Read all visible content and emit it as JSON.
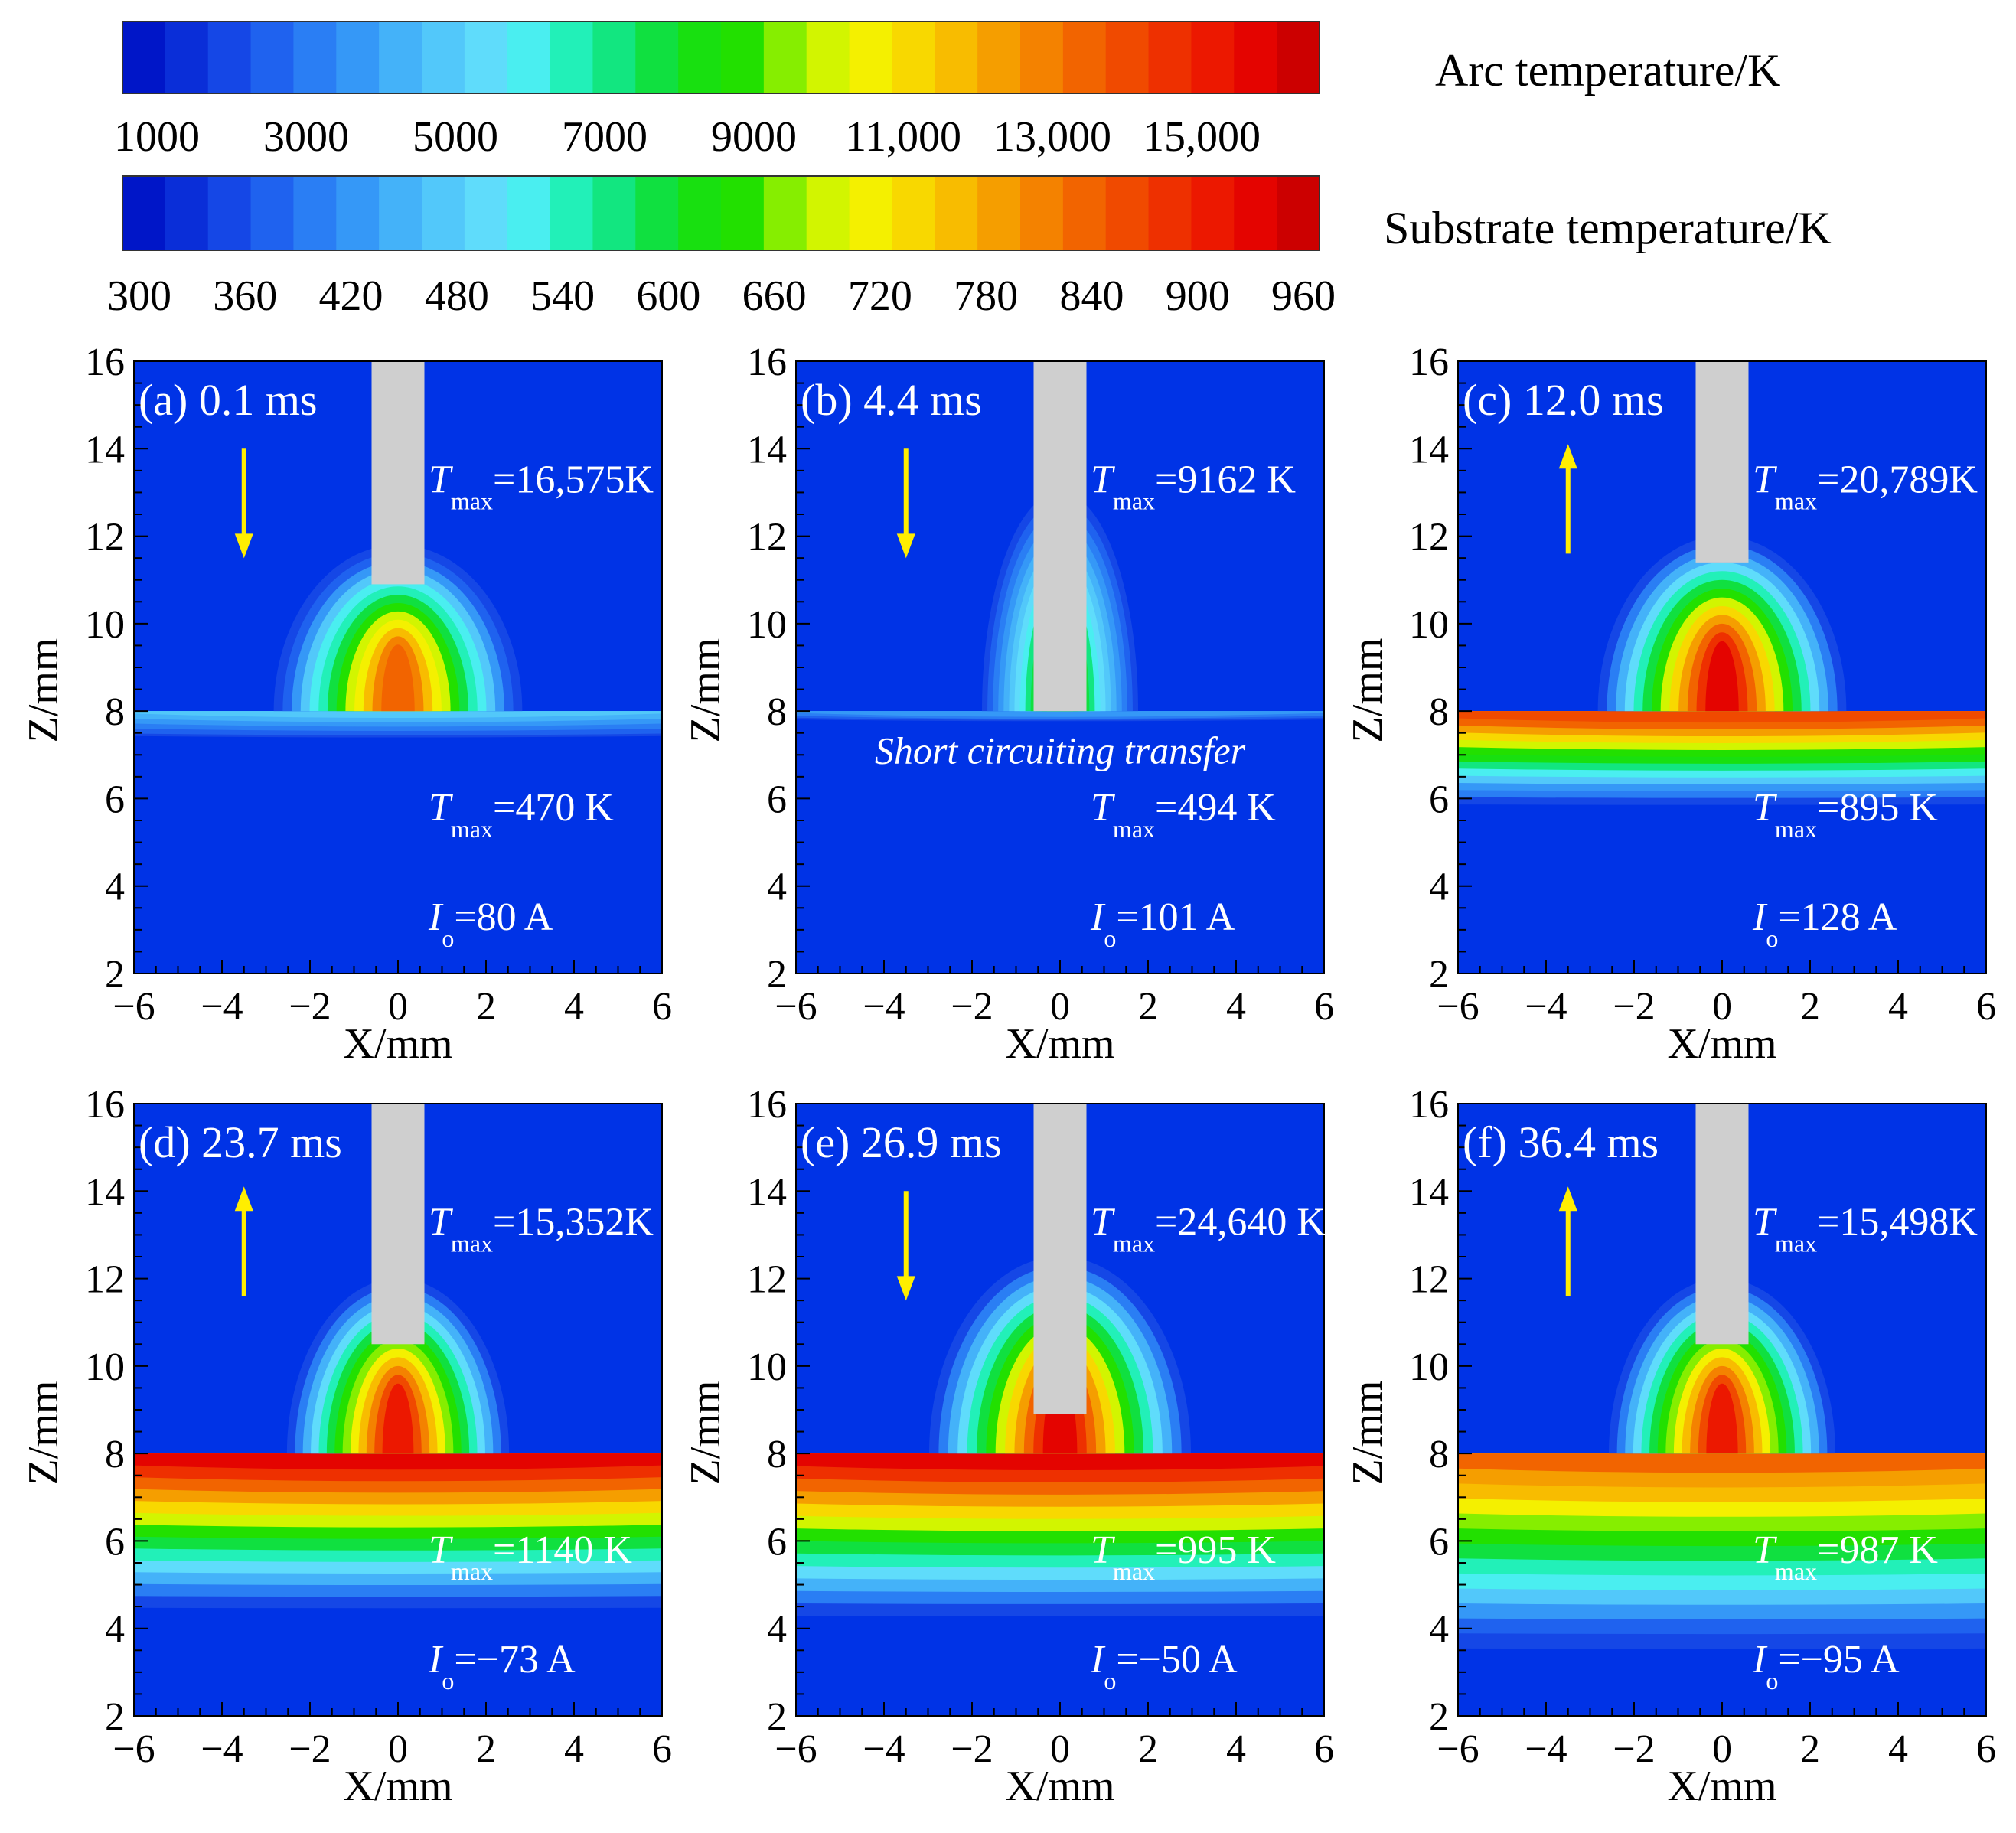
{
  "colorbars": [
    {
      "name": "Arc temperature/K",
      "tick_labels": [
        "1000",
        "3000",
        "5000",
        "7000",
        "9000",
        "11,000",
        "13,000",
        "15,000"
      ],
      "range": [
        1000,
        16600
      ]
    },
    {
      "name": "Substrate temperature/K",
      "tick_labels": [
        "300",
        "360",
        "420",
        "480",
        "540",
        "600",
        "660",
        "720",
        "780",
        "840",
        "900",
        "960"
      ],
      "range": [
        300,
        960
      ]
    }
  ],
  "colors": {
    "background_field": "#0033e6",
    "electrode": "#cfcfcf",
    "arrow": "#ffee00",
    "annotation_text": "#ffffff"
  },
  "chart_data": {
    "type": "heatmap",
    "xlabel": "X/mm",
    "ylabel": "Z/mm",
    "xlim": [
      -6,
      6
    ],
    "ylim": [
      2,
      16
    ],
    "xticks": [
      "−6",
      "−4",
      "−2",
      "0",
      "2",
      "4",
      "6"
    ],
    "yticks": [
      "2",
      "4",
      "6",
      "8",
      "10",
      "12",
      "14",
      "16"
    ],
    "substrate_surface_z": 8,
    "electrode_halfwidth_mm": 0.6,
    "panels": [
      {
        "label": "(a) 0.1 ms",
        "arc_tmax_value": "=16,575K",
        "sub_tmax_value": "=470 K",
        "current_value": "=80 A",
        "note": "",
        "arrow": "down",
        "electrode_tip_z": 10.9,
        "arc_level": 0.82,
        "arc_height": 3.8,
        "arc_width": 5.3,
        "sub_level": 0.25,
        "sub_depth": 0.8
      },
      {
        "label": "(b) 4.4 ms",
        "arc_tmax_value": "=9162 K",
        "sub_tmax_value": "=494 K",
        "current_value": "=101 A",
        "note": "Short circuiting transfer",
        "arrow": "down",
        "electrode_tip_z": 8.0,
        "arc_level": 0.55,
        "arc_height": 5.0,
        "arc_width": 3.2,
        "sub_level": 0.2,
        "sub_depth": 0.3
      },
      {
        "label": "(c) 12.0 ms",
        "arc_tmax_value": "=20,789K",
        "sub_tmax_value": "=895 K",
        "current_value": "=128 A",
        "note": "",
        "arrow": "up",
        "electrode_tip_z": 11.4,
        "arc_level": 0.95,
        "arc_height": 4.0,
        "arc_width": 5.3,
        "sub_level": 0.9,
        "sub_depth": 2.3
      },
      {
        "label": "(d) 23.7 ms",
        "arc_tmax_value": "=15,352K",
        "sub_tmax_value": "=1140 K",
        "current_value": "=−73 A",
        "note": "",
        "arrow": "up",
        "electrode_tip_z": 10.5,
        "arc_level": 0.92,
        "arc_height": 4.0,
        "arc_width": 4.7,
        "sub_level": 1.0,
        "sub_depth": 3.8
      },
      {
        "label": "(e) 26.9 ms",
        "arc_tmax_value": "=24,640 K",
        "sub_tmax_value": "=995 K",
        "current_value": "=−50 A",
        "note": "",
        "arrow": "down",
        "electrode_tip_z": 8.9,
        "arc_level": 0.95,
        "arc_height": 4.5,
        "arc_width": 5.6,
        "sub_level": 1.0,
        "sub_depth": 4.0
      },
      {
        "label": "(f) 36.4 ms",
        "arc_tmax_value": "=15,498K",
        "sub_tmax_value": "=987 K",
        "current_value": "=−95 A",
        "note": "",
        "arrow": "up",
        "electrode_tip_z": 10.5,
        "arc_level": 0.92,
        "arc_height": 4.0,
        "arc_width": 4.8,
        "sub_level": 0.85,
        "sub_depth": 4.8
      }
    ]
  }
}
